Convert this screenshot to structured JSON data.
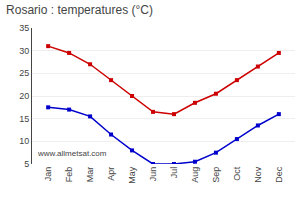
{
  "chart_data": {
    "type": "line",
    "title": "Rosario : temperatures (°C)",
    "categories": [
      "Jan",
      "Feb",
      "Mar",
      "Apr",
      "May",
      "Jun",
      "Jul",
      "Aug",
      "Sep",
      "Oct",
      "Nov",
      "Dec"
    ],
    "series": [
      {
        "color": "#cc0000",
        "values": [
          31,
          29.5,
          27,
          23.5,
          20,
          16.5,
          16,
          18.5,
          20.5,
          23.5,
          26.5,
          29.5
        ]
      },
      {
        "color": "#0000cc",
        "values": [
          17.5,
          17,
          15.5,
          11.5,
          8,
          5,
          5,
          5.5,
          7.5,
          10.5,
          13.5,
          16
        ]
      }
    ],
    "ylim": [
      5,
      35
    ],
    "yticks": [
      5,
      10,
      15,
      20,
      25,
      30,
      35
    ],
    "grid": true,
    "marker": "square",
    "annotations": [
      "www.allmetsat.com"
    ]
  }
}
